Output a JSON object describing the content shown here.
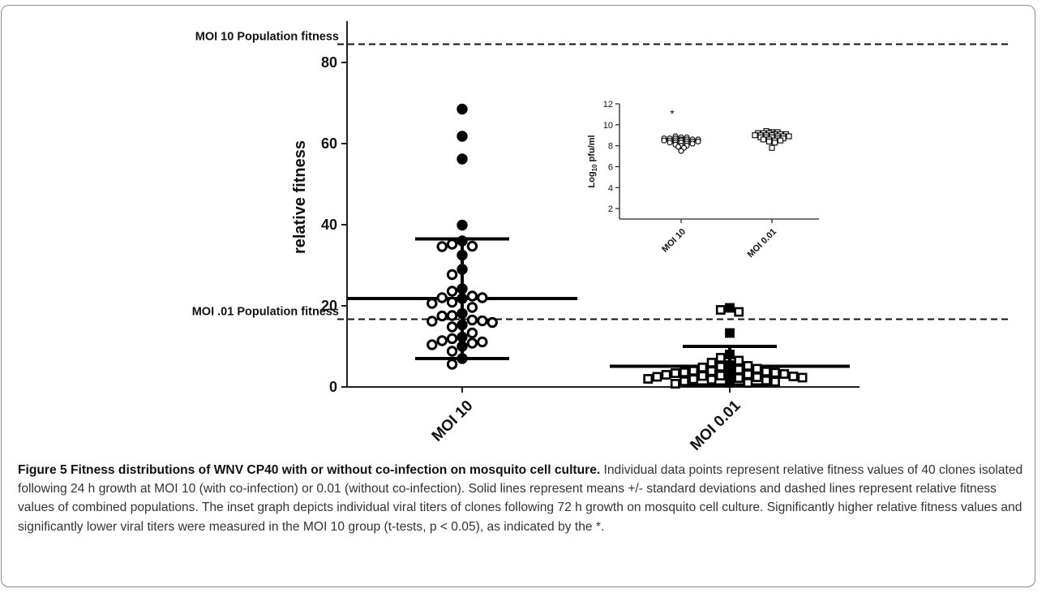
{
  "chart_data": [
    {
      "type": "scatter",
      "subtype": "dot plot with mean and standard deviation",
      "xlabel": "",
      "ylabel": "relative fitness",
      "categories": [
        "MOI 10",
        "MOI 0.01"
      ],
      "yticks": [
        "0",
        "20",
        "40",
        "60",
        "80"
      ],
      "ylim": [
        0,
        86
      ],
      "series": [
        {
          "category": "MOI 10",
          "marker": "circle",
          "values": [
            68.5,
            61.8,
            56.2,
            39.9,
            36.0,
            35.2,
            34.7,
            34.6,
            32.5,
            29.0,
            27.7,
            24.2,
            23.6,
            22.4,
            22.0,
            22.0,
            21.8,
            20.9,
            20.6,
            19.6,
            18.1,
            17.6,
            17.5,
            16.5,
            16.3,
            16.2,
            15.9,
            15.3,
            14.8,
            13.3,
            12.3,
            11.9,
            11.4,
            11.1,
            10.8,
            10.4,
            10.0,
            8.8,
            7.0,
            5.6
          ],
          "mean": 21.8,
          "sd_low": 7.0,
          "sd_high": 36.5
        },
        {
          "category": "MOI 0.01",
          "marker": "square",
          "values": [
            19.5,
            19.0,
            18.5,
            13.3,
            8.0,
            7.2,
            6.5,
            6.0,
            5.4,
            5.2,
            5.0,
            4.8,
            4.5,
            4.3,
            4.0,
            3.9,
            3.8,
            3.6,
            3.5,
            3.4,
            3.3,
            3.2,
            3.1,
            3.0,
            2.8,
            2.7,
            2.6,
            2.5,
            2.4,
            2.3,
            2.2,
            2.0,
            1.9,
            1.8,
            1.6,
            1.4,
            1.3,
            1.1,
            1.0,
            0.8
          ],
          "mean": 5.1,
          "sd_low": 0.5,
          "sd_high": 10.0
        }
      ],
      "reference_lines": [
        {
          "label": "MOI 10 Population fitness",
          "value": 84.5
        },
        {
          "label": "MOI .01 Population fitness",
          "value": 16.7
        }
      ],
      "grid": false,
      "legend": "none"
    },
    {
      "type": "scatter",
      "role": "inset",
      "ylabel": "Log10 pfu/ml",
      "ylabel_parts": {
        "base": "Log",
        "sub": "10",
        "rest": " pfu/ml"
      },
      "categories": [
        "MOI 10",
        "MOI 0.01"
      ],
      "yticks": [
        "2",
        "4",
        "6",
        "8",
        "10",
        "12"
      ],
      "ylim": [
        1,
        12
      ],
      "annotation": "*",
      "series": [
        {
          "category": "MOI 10",
          "marker": "circle",
          "values": [
            8.9,
            8.8,
            8.8,
            8.7,
            8.7,
            8.7,
            8.6,
            8.6,
            8.6,
            8.6,
            8.5,
            8.5,
            8.5,
            8.5,
            8.4,
            8.4,
            8.4,
            8.3,
            8.3,
            8.3,
            8.2,
            8.2,
            8.1,
            8.0,
            8.0,
            7.9,
            7.8,
            7.5
          ]
        },
        {
          "category": "MOI 0.01",
          "marker": "square",
          "values": [
            9.4,
            9.3,
            9.3,
            9.2,
            9.2,
            9.2,
            9.1,
            9.1,
            9.1,
            9.0,
            9.0,
            9.0,
            9.0,
            8.9,
            8.9,
            8.9,
            8.8,
            8.8,
            8.8,
            8.7,
            8.7,
            8.6,
            8.6,
            8.5,
            8.5,
            8.4,
            8.3,
            7.8
          ]
        }
      ]
    }
  ],
  "caption": {
    "title": "Figure 5 Fitness distributions of WNV CP40 with or without co-infection on mosquito cell culture.",
    "body": " Individual data points represent relative fitness values of 40 clones isolated following 24 h growth at MOI 10 (with co-infection) or 0.01 (without co-infection). Solid lines represent means +/- standard deviations and dashed lines represent relative fitness values of combined populations. The inset graph depicts individual viral titers of clones following 72 h growth on mosquito cell culture. Significantly higher relative fitness values and significantly lower viral titers were measured in the MOI 10 group (t-tests, p < 0.05), as indicated by the *."
  }
}
